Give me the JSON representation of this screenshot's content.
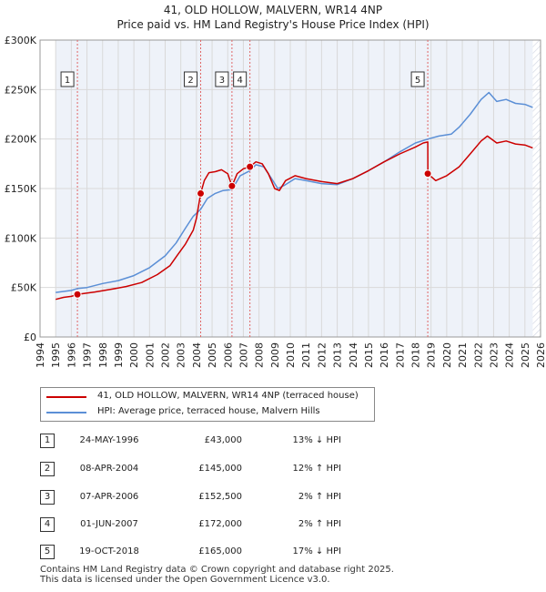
{
  "title_line1": "41, OLD HOLLOW, MALVERN, WR14 4NP",
  "title_line2": "Price paid vs. HM Land Registry's House Price Index (HPI)",
  "chart_data": {
    "type": "line",
    "x_range": [
      1994,
      2026
    ],
    "ylim": [
      0,
      300000
    ],
    "y_ticks": [
      {
        "value": 0,
        "label": "£0"
      },
      {
        "value": 50000,
        "label": "£50K"
      },
      {
        "value": 100000,
        "label": "£100K"
      },
      {
        "value": 150000,
        "label": "£150K"
      },
      {
        "value": 200000,
        "label": "£200K"
      },
      {
        "value": 250000,
        "label": "£250K"
      },
      {
        "value": 300000,
        "label": "£300K"
      }
    ],
    "x_ticks": [
      1994,
      1995,
      1996,
      1997,
      1998,
      1999,
      2000,
      2001,
      2002,
      2003,
      2004,
      2005,
      2006,
      2007,
      2008,
      2009,
      2010,
      2011,
      2012,
      2013,
      2014,
      2015,
      2016,
      2017,
      2018,
      2019,
      2020,
      2021,
      2022,
      2023,
      2024,
      2025,
      2026
    ],
    "shade_start": 1995.0,
    "shade_end": 2025.5,
    "series": [
      {
        "name": "41, OLD HOLLOW, MALVERN, WR14 4NP (terraced house)",
        "color": "#cc0000",
        "points": [
          [
            1995.0,
            38000
          ],
          [
            1995.5,
            40000
          ],
          [
            1996.0,
            41000
          ],
          [
            1996.39,
            43000
          ],
          [
            1996.8,
            44000
          ],
          [
            1997.5,
            45500
          ],
          [
            1998.5,
            48000
          ],
          [
            1999.5,
            51000
          ],
          [
            2000.5,
            55000
          ],
          [
            2001.5,
            63000
          ],
          [
            2002.3,
            72000
          ],
          [
            2002.8,
            83000
          ],
          [
            2003.3,
            94000
          ],
          [
            2003.8,
            108000
          ],
          [
            2004.0,
            120000
          ],
          [
            2004.27,
            145000
          ],
          [
            2004.5,
            158000
          ],
          [
            2004.8,
            166000
          ],
          [
            2005.2,
            167000
          ],
          [
            2005.6,
            169000
          ],
          [
            2006.0,
            165000
          ],
          [
            2006.27,
            152500
          ],
          [
            2006.6,
            165000
          ],
          [
            2007.0,
            170000
          ],
          [
            2007.42,
            172000
          ],
          [
            2007.8,
            177000
          ],
          [
            2008.2,
            175000
          ],
          [
            2008.6,
            165000
          ],
          [
            2009.0,
            150000
          ],
          [
            2009.3,
            148000
          ],
          [
            2009.7,
            158000
          ],
          [
            2010.3,
            163000
          ],
          [
            2011.0,
            160000
          ],
          [
            2012.0,
            157000
          ],
          [
            2013.0,
            155000
          ],
          [
            2014.0,
            160000
          ],
          [
            2015.0,
            168000
          ],
          [
            2016.0,
            177000
          ],
          [
            2017.0,
            185000
          ],
          [
            2018.0,
            192000
          ],
          [
            2018.5,
            196000
          ],
          [
            2018.79,
            197000
          ],
          [
            2018.8,
            165000
          ],
          [
            2019.3,
            158000
          ],
          [
            2020.0,
            163000
          ],
          [
            2020.8,
            172000
          ],
          [
            2021.5,
            185000
          ],
          [
            2022.2,
            198000
          ],
          [
            2022.6,
            203000
          ],
          [
            2023.2,
            196000
          ],
          [
            2023.8,
            198000
          ],
          [
            2024.4,
            195000
          ],
          [
            2025.0,
            194000
          ],
          [
            2025.5,
            191000
          ]
        ]
      },
      {
        "name": "HPI: Average price, terraced house, Malvern Hills",
        "color": "#5b8fd6",
        "points": [
          [
            1995.0,
            45000
          ],
          [
            1995.5,
            46000
          ],
          [
            1996.0,
            47000
          ],
          [
            1996.39,
            49000
          ],
          [
            1997.0,
            50000
          ],
          [
            1998.0,
            54000
          ],
          [
            1999.0,
            57000
          ],
          [
            2000.0,
            62000
          ],
          [
            2001.0,
            70000
          ],
          [
            2002.0,
            82000
          ],
          [
            2002.7,
            95000
          ],
          [
            2003.3,
            110000
          ],
          [
            2003.8,
            122000
          ],
          [
            2004.27,
            129000
          ],
          [
            2004.7,
            140000
          ],
          [
            2005.2,
            145000
          ],
          [
            2005.7,
            148000
          ],
          [
            2006.27,
            149000
          ],
          [
            2006.8,
            163000
          ],
          [
            2007.42,
            168000
          ],
          [
            2007.8,
            174000
          ],
          [
            2008.3,
            172000
          ],
          [
            2008.8,
            160000
          ],
          [
            2009.2,
            150000
          ],
          [
            2009.6,
            153000
          ],
          [
            2010.3,
            160000
          ],
          [
            2011.0,
            158000
          ],
          [
            2012.0,
            155000
          ],
          [
            2013.0,
            154000
          ],
          [
            2014.0,
            160000
          ],
          [
            2015.0,
            168000
          ],
          [
            2016.0,
            177000
          ],
          [
            2017.0,
            187000
          ],
          [
            2018.0,
            196000
          ],
          [
            2018.79,
            200000
          ],
          [
            2019.5,
            203000
          ],
          [
            2020.3,
            205000
          ],
          [
            2020.8,
            212000
          ],
          [
            2021.5,
            225000
          ],
          [
            2022.2,
            240000
          ],
          [
            2022.7,
            247000
          ],
          [
            2023.2,
            238000
          ],
          [
            2023.8,
            240000
          ],
          [
            2024.4,
            236000
          ],
          [
            2025.0,
            235000
          ],
          [
            2025.5,
            232000
          ]
        ]
      }
    ],
    "sales": [
      {
        "label": "1",
        "x": 1996.39,
        "price": 43000
      },
      {
        "label": "2",
        "x": 2004.27,
        "price": 145000
      },
      {
        "label": "3",
        "x": 2006.27,
        "price": 152500
      },
      {
        "label": "4",
        "x": 2007.42,
        "price": 172000
      },
      {
        "label": "5",
        "x": 2018.79,
        "price": 165000
      }
    ]
  },
  "legend": {
    "property": "41, OLD HOLLOW, MALVERN, WR14 4NP (terraced house)",
    "hpi": "HPI: Average price, terraced house, Malvern Hills"
  },
  "transactions": [
    {
      "num": "1",
      "date": "24-MAY-1996",
      "price": "£43,000",
      "hpi": "13% ↓ HPI"
    },
    {
      "num": "2",
      "date": "08-APR-2004",
      "price": "£145,000",
      "hpi": "12% ↑ HPI"
    },
    {
      "num": "3",
      "date": "07-APR-2006",
      "price": "£152,500",
      "hpi": "2% ↑ HPI"
    },
    {
      "num": "4",
      "date": "01-JUN-2007",
      "price": "£172,000",
      "hpi": "2% ↑ HPI"
    },
    {
      "num": "5",
      "date": "19-OCT-2018",
      "price": "£165,000",
      "hpi": "17% ↓ HPI"
    }
  ],
  "footer_line1": "Contains HM Land Registry data © Crown copyright and database right 2025.",
  "footer_line2": "This data is licensed under the Open Government Licence v3.0."
}
